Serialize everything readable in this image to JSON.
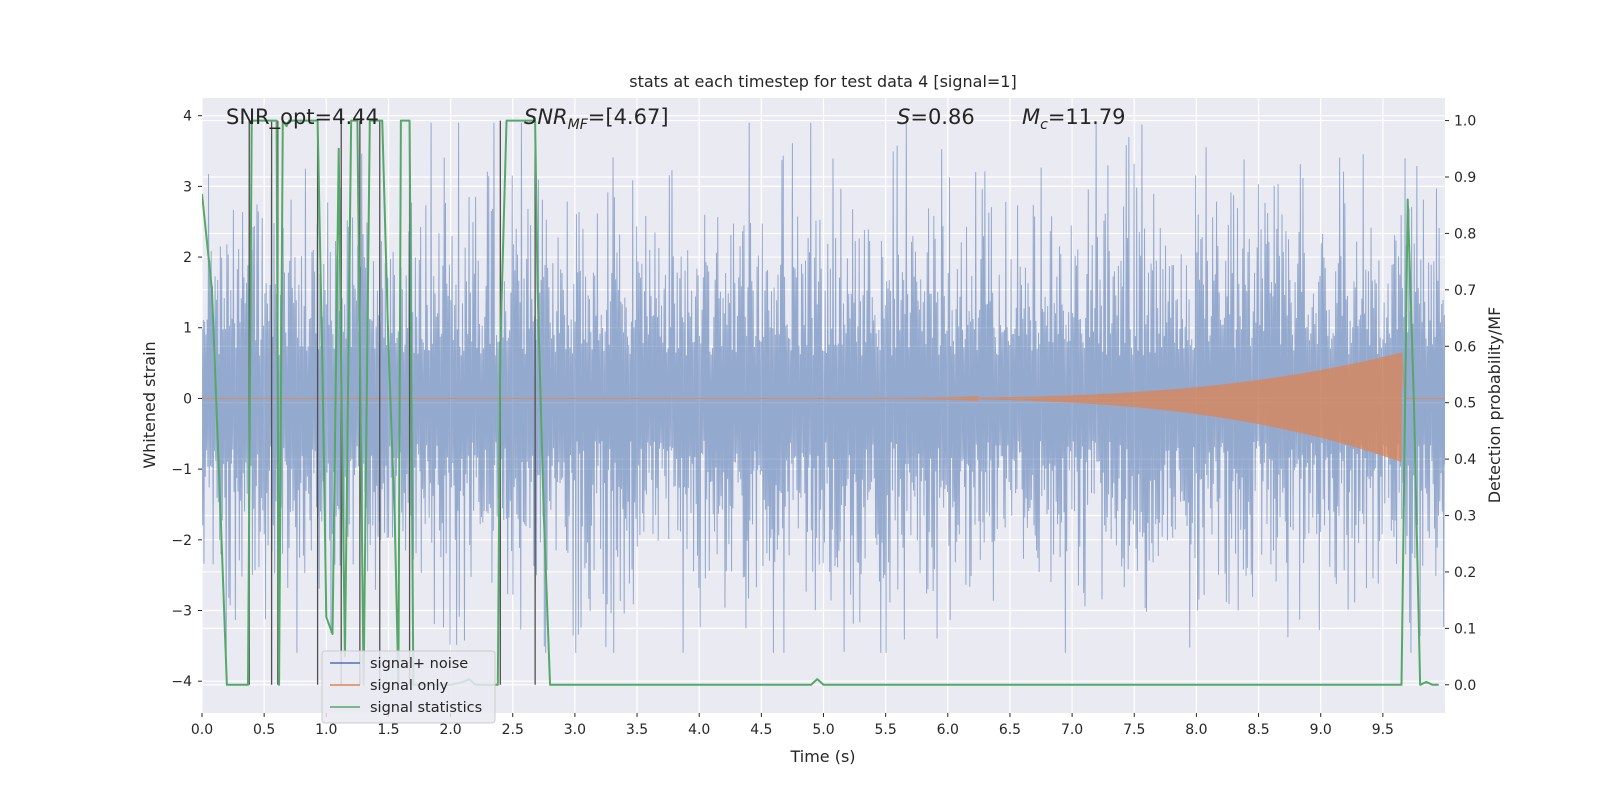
{
  "chart_data": {
    "type": "line",
    "title": "stats at each timestep for test data 4 [signal=1]",
    "xlabel": "Time (s)",
    "ylabel_left": "Whitened strain",
    "ylabel_right": "Detection probability/MF",
    "xlim": [
      0,
      10
    ],
    "ylim_left": [
      -4.45,
      4.25
    ],
    "ylim_right": [
      -0.05,
      1.04
    ],
    "grid": true,
    "legend_position": "lower-left",
    "x_ticks": [
      "0.0",
      "0.5",
      "1.0",
      "1.5",
      "2.0",
      "2.5",
      "3.0",
      "3.5",
      "4.0",
      "4.5",
      "5.0",
      "5.5",
      "6.0",
      "6.5",
      "7.0",
      "7.5",
      "8.0",
      "8.5",
      "9.0",
      "9.5"
    ],
    "y_ticks_left": [
      "4",
      "3",
      "2",
      "1",
      "0",
      "−1",
      "−2",
      "−3",
      "−4"
    ],
    "y_ticks_right": [
      "1.0",
      "0.9",
      "0.8",
      "0.7",
      "0.6",
      "0.5",
      "0.4",
      "0.3",
      "0.2",
      "0.1",
      "0.0"
    ],
    "annotations": {
      "snr_opt": "SNR_opt=4.44",
      "snr_mf_symbol": "SNR",
      "snr_mf_sub": "MF",
      "snr_mf_value": "=[4.67]",
      "s_symbol": "S",
      "s_value": "=0.86",
      "mc_symbol": "M",
      "mc_sub": "c",
      "mc_value": "=11.79"
    },
    "colors": {
      "plot_bg": "#eaeaf2",
      "grid": "#ffffff",
      "noise": "#4c72b0",
      "signal": "#dd8452",
      "statistics": "#55a868",
      "mf_lines": "#505050"
    },
    "series": [
      {
        "name": "signal+ noise",
        "axis": "left",
        "description_stat": "whitened strain noise, amplitude within about -3.5..3.9",
        "envelope": {
          "x": [
            0,
            10
          ],
          "mean": 0.0,
          "std": 1.0
        }
      },
      {
        "name": "signal only",
        "axis": "left",
        "chirp": {
          "x_start": 5.0,
          "x_merger": 9.65,
          "peak_amplitude": 0.65,
          "min_amplitude": -0.9
        }
      },
      {
        "name": "signal statistics",
        "axis": "right",
        "x": [
          0.0,
          0.08,
          0.15,
          0.2,
          0.3,
          0.37,
          0.4,
          0.45,
          0.5,
          0.55,
          0.6,
          0.62,
          0.65,
          0.68,
          0.7,
          0.75,
          0.8,
          0.85,
          0.93,
          0.97,
          1.0,
          1.05,
          1.08,
          1.1,
          1.12,
          1.15,
          1.2,
          1.25,
          1.3,
          1.35,
          1.4,
          1.45,
          1.5,
          1.55,
          1.58,
          1.6,
          1.63,
          1.67,
          1.7,
          1.75,
          1.8,
          1.9,
          2.0,
          2.1,
          2.15,
          2.2,
          2.3,
          2.38,
          2.4,
          2.45,
          2.5,
          2.55,
          2.6,
          2.68,
          2.7,
          2.75,
          2.8,
          2.85,
          3.0,
          4.0,
          4.9,
          4.95,
          5.0,
          5.5,
          6.0,
          7.0,
          8.0,
          9.0,
          9.5,
          9.65,
          9.7,
          9.75,
          9.8,
          9.85,
          9.9,
          9.95
        ],
        "y": [
          0.87,
          0.7,
          0.3,
          0.0,
          0.0,
          0.0,
          1.0,
          1.0,
          1.0,
          1.0,
          1.0,
          0.0,
          1.0,
          0.99,
          1.0,
          1.0,
          1.0,
          1.0,
          1.0,
          0.55,
          0.12,
          0.09,
          0.6,
          0.95,
          0.55,
          0.05,
          1.0,
          1.0,
          0.0,
          1.0,
          1.0,
          1.0,
          0.6,
          0.3,
          0.0,
          1.0,
          1.0,
          1.0,
          0.0,
          0.0,
          0.0,
          0.0,
          0.0,
          0.005,
          0.01,
          0.0,
          0.0,
          0.0,
          0.6,
          1.0,
          1.0,
          1.0,
          1.0,
          1.0,
          0.7,
          0.3,
          0.0,
          0.0,
          0.0,
          0.0,
          0.0,
          0.01,
          0.0,
          0.0,
          0.0,
          0.0,
          0.0,
          0.0,
          0.0,
          0.0,
          0.86,
          0.5,
          0.0,
          0.005,
          0.0,
          0.0
        ]
      },
      {
        "name": "MF triggers",
        "axis": "right",
        "vlines_x": [
          0.38,
          0.56,
          0.61,
          0.93,
          1.12,
          1.27,
          1.43,
          1.67,
          2.4,
          2.68
        ]
      }
    ]
  }
}
